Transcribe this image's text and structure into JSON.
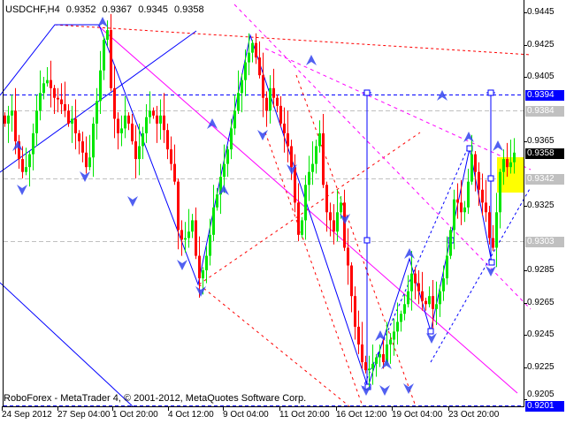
{
  "header": {
    "symbol": "USDCHF,H4",
    "open": "0.9352",
    "high": "0.9367",
    "low": "0.9345",
    "close": "0.9358"
  },
  "footer": {
    "copyright": "RoboForex - MetaTrader 4, © 2001-2012, MetaQuotes Software Corp."
  },
  "colors": {
    "bull": "#00E600",
    "bear": "#FF0000",
    "background": "#FFFFFF",
    "highlight": "#FFFF00",
    "level_blue": "#0000FF",
    "level_gray": "#C0C0C0"
  },
  "chart_data": {
    "type": "candlestick",
    "timeframe": "H4",
    "ylim": [
      0.9201,
      0.9445
    ],
    "y_ticks": [
      "0.9445",
      "0.9425",
      "0.9405",
      "0.9365",
      "0.9325",
      "0.9285",
      "0.9265",
      "0.9245",
      "0.9225",
      "0.9205"
    ],
    "x_ticks": [
      "24 Sep 2012",
      "27 Sep 04:00",
      "1 Oct 20:00",
      "4 Oct 12:00",
      "9 Oct 04:00",
      "11 Oct 20:00",
      "16 Oct 12:00",
      "19 Oct 04:00",
      "23 Oct 20:00"
    ],
    "closes": [
      0.9376,
      0.9381,
      0.9384,
      0.9365,
      0.9354,
      0.9346,
      0.9349,
      0.9357,
      0.937,
      0.9384,
      0.9395,
      0.9401,
      0.9403,
      0.9398,
      0.9392,
      0.9391,
      0.9388,
      0.9384,
      0.9376,
      0.9379,
      0.937,
      0.9365,
      0.9358,
      0.9349,
      0.9355,
      0.9376,
      0.939,
      0.9409,
      0.9428,
      0.9434,
      0.9398,
      0.9379,
      0.937,
      0.9373,
      0.9381,
      0.9376,
      0.9365,
      0.9354,
      0.9362,
      0.937,
      0.938,
      0.9384,
      0.9381,
      0.9376,
      0.9381,
      0.9372,
      0.936,
      0.9351,
      0.934,
      0.931,
      0.9304,
      0.9305,
      0.9309,
      0.9316,
      0.9294,
      0.928,
      0.9285,
      0.9294,
      0.9307,
      0.9324,
      0.9332,
      0.9343,
      0.9351,
      0.936,
      0.9373,
      0.9384,
      0.9395,
      0.9403,
      0.9414,
      0.942,
      0.9426,
      0.9417,
      0.9406,
      0.9392,
      0.9384,
      0.9398,
      0.9392,
      0.9387,
      0.9376,
      0.937,
      0.9362,
      0.9349,
      0.9327,
      0.9307,
      0.9316,
      0.9338,
      0.9346,
      0.9351,
      0.9362,
      0.937,
      0.9338,
      0.9321,
      0.9316,
      0.9309,
      0.9321,
      0.9327,
      0.9299,
      0.9288,
      0.9269,
      0.925,
      0.9239,
      0.9228,
      0.9223,
      0.9224,
      0.9227,
      0.9231,
      0.9233,
      0.9228,
      0.9239,
      0.9242,
      0.9247,
      0.9253,
      0.9258,
      0.9264,
      0.9272,
      0.9283,
      0.9277,
      0.9272,
      0.9266,
      0.9264,
      0.9269,
      0.9261,
      0.9264,
      0.9272,
      0.928,
      0.9294,
      0.931,
      0.9329,
      0.9327,
      0.9321,
      0.9324,
      0.934,
      0.9357,
      0.9346,
      0.9335,
      0.9327,
      0.9321,
      0.9305,
      0.9299,
      0.9321,
      0.9346,
      0.9354,
      0.9349,
      0.9352,
      0.9358
    ],
    "last_bar": {
      "open": 0.9352,
      "high": 0.9367,
      "low": 0.9345,
      "close": 0.9358
    },
    "price_levels": [
      {
        "price": "0.9394",
        "style": "blue-dashed",
        "label_bg": "#0000FF",
        "label_fg": "#FFFFFF"
      },
      {
        "price": "0.9384",
        "style": "gray-dashed",
        "label_bg": "#C0C0C0",
        "label_fg": "#FFFFFF"
      },
      {
        "price": "0.9358",
        "style": "current",
        "label_bg": "#000000",
        "label_fg": "#FFFFFF"
      },
      {
        "price": "0.9342",
        "style": "gray-dashed",
        "label_bg": "#C0C0C0",
        "label_fg": "#FFFFFF"
      },
      {
        "price": "0.9303",
        "style": "gray-dashed",
        "label_bg": "#C0C0C0",
        "label_fg": "#FFFFFF"
      },
      {
        "price": "0.9201",
        "style": "blue-dashed",
        "label_bg": "#0000FF",
        "label_fg": "#FFFFFF"
      }
    ],
    "grid": false
  }
}
